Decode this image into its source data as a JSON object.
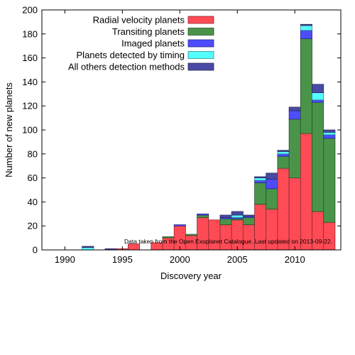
{
  "chart_data": {
    "type": "bar",
    "stacked": true,
    "xlabel": "Discovery year",
    "ylabel": "Number of new planets",
    "xlim": [
      1988,
      2014
    ],
    "ylim": [
      0,
      200
    ],
    "xticks": [
      1990,
      1995,
      2000,
      2005,
      2010
    ],
    "yticks": [
      0,
      20,
      40,
      60,
      80,
      100,
      120,
      140,
      160,
      180,
      200
    ],
    "annotation": "Data taken from the Open Exoplanet Catalogue. Last updated on 2013-09-22.",
    "legend_position": "top-left",
    "grid": false,
    "x": [
      1989,
      1990,
      1991,
      1992,
      1993,
      1994,
      1995,
      1996,
      1997,
      1998,
      1999,
      2000,
      2001,
      2002,
      2003,
      2004,
      2005,
      2006,
      2007,
      2008,
      2009,
      2010,
      2011,
      2012,
      2013
    ],
    "series": [
      {
        "name": "Radial velocity planets",
        "color": "#ff4b55",
        "values": [
          0,
          0,
          0,
          0,
          0,
          0,
          1,
          5,
          0,
          6,
          10,
          20,
          12,
          27,
          25,
          21,
          25,
          21,
          38,
          34,
          68,
          60,
          97,
          32,
          23
        ]
      },
      {
        "name": "Transiting planets",
        "color": "#4a944a",
        "values": [
          0,
          0,
          0,
          0,
          0,
          0,
          0,
          0,
          0,
          0,
          1,
          0,
          1,
          2,
          0,
          5,
          1,
          6,
          18,
          17,
          10,
          49,
          79,
          91,
          70
        ]
      },
      {
        "name": "Imaged planets",
        "color": "#4d4dff",
        "values": [
          0,
          0,
          0,
          0,
          0,
          0,
          0,
          0,
          0,
          0,
          0,
          1,
          0,
          1,
          0,
          1,
          1,
          1,
          2,
          8,
          2,
          7,
          7,
          2,
          3
        ]
      },
      {
        "name": "Planets detected by timing",
        "color": "#55ffff",
        "values": [
          0,
          0,
          0,
          2,
          0,
          0,
          0,
          0,
          0,
          0,
          0,
          0,
          0,
          0,
          0,
          0,
          2,
          0,
          2,
          0,
          2,
          0,
          4,
          6,
          2
        ]
      },
      {
        "name": "All others detection methods",
        "color": "#4a4aa6",
        "values": [
          0,
          0,
          0,
          1,
          0,
          1,
          0,
          0,
          0,
          0,
          0,
          0,
          0,
          0,
          0,
          2,
          3,
          1,
          1,
          5,
          1,
          3,
          1,
          7,
          2
        ]
      }
    ]
  }
}
